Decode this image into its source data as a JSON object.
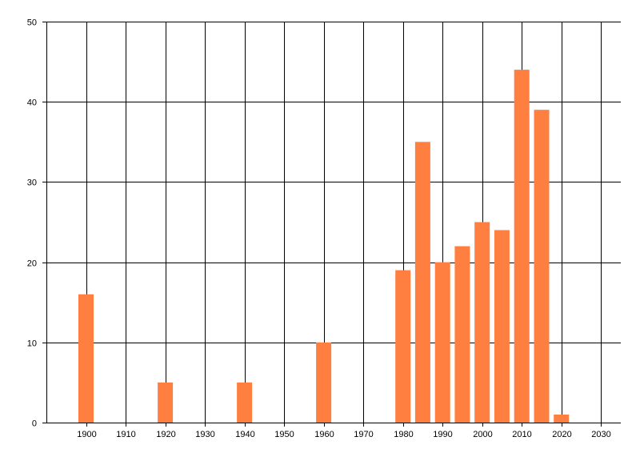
{
  "chart_data": {
    "type": "bar",
    "title": "",
    "xlabel": "",
    "ylabel": "",
    "x": [
      1900,
      1920,
      1940,
      1960,
      1980,
      1985,
      1990,
      1995,
      2000,
      2005,
      2010,
      2015,
      2020
    ],
    "values": [
      16,
      5,
      5,
      10,
      19,
      35,
      20,
      22,
      25,
      24,
      44,
      39,
      1
    ],
    "xlim": [
      1890,
      2035
    ],
    "ylim": [
      0,
      50
    ],
    "x_ticks": [
      1900,
      1910,
      1920,
      1930,
      1940,
      1950,
      1960,
      1970,
      1980,
      1990,
      2000,
      2010,
      2020,
      2030
    ],
    "y_ticks": [
      0,
      10,
      20,
      30,
      40,
      50
    ],
    "grid": true,
    "legend": "none",
    "colors": {
      "bar": "#ff7f40",
      "grid": "#000000",
      "axis": "#000000",
      "background": "#ffffff"
    }
  }
}
